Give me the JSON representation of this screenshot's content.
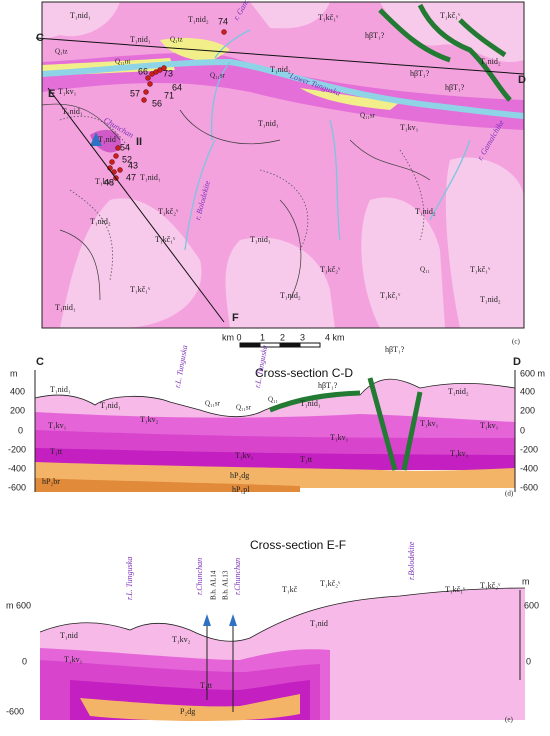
{
  "map": {
    "panel": "(c)",
    "section_ends": [
      "C",
      "D",
      "E",
      "F"
    ],
    "profile": "II",
    "rivers": [
      "r. Gancha",
      "Lower Tunguska",
      "Chunchan",
      "r. Gamalchike",
      "r. Bolodekite"
    ],
    "points": [
      "74",
      "66",
      "73",
      "64",
      "71",
      "57",
      "56",
      "54",
      "52",
      "43",
      "48",
      "47"
    ],
    "units": [
      "T₁nid₁",
      "T₁nid₁",
      "T₁nid₂",
      "T₁kč₁ᵛ",
      "T₁kč₁ᵛ",
      "hβT₁?",
      "hβT₁?",
      "hβT₁?",
      "T₁nid₂",
      "Q₁tz",
      "Q₁tz",
      "Q₁₁nt",
      "Q₁₁sr",
      "T₁kv₁",
      "T₁nid₁",
      "T₁nid",
      "T₁kv₁",
      "T₁nid₁",
      "T₁nid₂",
      "T₁kv₁",
      "Q₁₁sr",
      "T₁nid₁",
      "T₁kč₂ᵛ",
      "T₁kč₁ᵛ",
      "T₁nid₂",
      "T₁nid₁",
      "T₁kč₁ᵛ",
      "T₁kč₂ᵛ",
      "T₁kč₁ᵛ",
      "T₁nid₂",
      "T₁nid₂",
      "T₁nid₁",
      "T₁kč₁ᵛ",
      "T₁nid₂",
      "Q₁₁"
    ]
  },
  "scale": [
    "km 0",
    "1",
    "2",
    "3",
    "4 km"
  ],
  "section_cd": {
    "title": "Cross-section C-D",
    "panel": "(d)",
    "ends": [
      "C",
      "D"
    ],
    "left_axis": [
      "m",
      "400",
      "200",
      "0",
      "-200",
      "-400",
      "-600"
    ],
    "right_axis": [
      "600 m",
      "400",
      "200",
      "0",
      "-200",
      "-400",
      "-600"
    ],
    "rivers": [
      "r.L. Tunguska",
      "r.L. Tunguska"
    ],
    "units": [
      "T₁nid₁",
      "T₁nid₁",
      "Q₁₁sr",
      "Q₁₁sr",
      "Q₁₁",
      "hβT₁?",
      "hβT₁?",
      "T₁nid₁",
      "T₁nid₂",
      "T₁kv₁",
      "T₁kv₂",
      "T₁kv₁",
      "T₁kv₁",
      "T₁kv₁",
      "T₁tt",
      "T₁kv₁",
      "T₁tt",
      "T₁kv₁",
      "hP₂dg",
      "hP₂br",
      "hP₁pl"
    ]
  },
  "section_ef": {
    "title": "Cross-section E-F",
    "panel": "(e)",
    "left_axis": [
      "m 600",
      "0",
      "-600"
    ],
    "right_axis": [
      "m",
      "600",
      "0"
    ],
    "rivers": [
      "r.L. Tunguska",
      "r.Chunchan",
      "r.Chunchan",
      "r.Bolodekite"
    ],
    "boreholes": [
      "B.h. AL14",
      "B.h. AL13"
    ],
    "units": [
      "T₁nid",
      "T₁kv₂",
      "T₁kv₁",
      "T₁tt",
      "P₂dg",
      "T₁nid",
      "T₁kč",
      "T₁kč₂ᵛ",
      "T₁kč₁ᵛ",
      "T₁kč₂ᵛ"
    ]
  }
}
